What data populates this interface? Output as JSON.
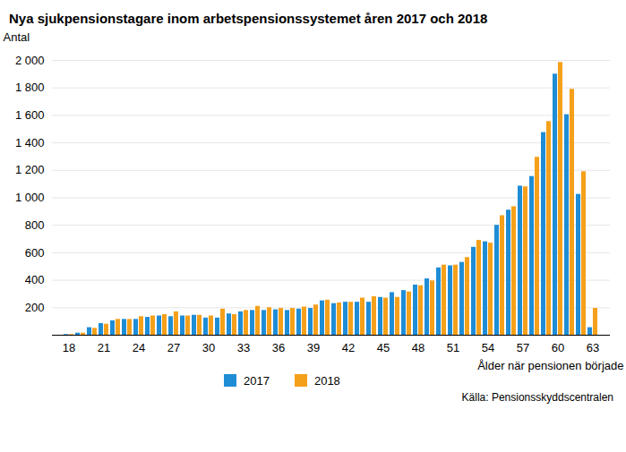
{
  "chart_data": {
    "type": "bar",
    "title": "Nya sjukpensionstagare inom arbetspensionssystemet åren 2017 och 2018",
    "y_label": "Antal",
    "x_label": "Ålder när pensionen började",
    "source": "Källa: Pensionsskyddscentralen",
    "categories": [
      "18",
      null,
      null,
      "21",
      null,
      null,
      "24",
      null,
      null,
      "27",
      null,
      null,
      "30",
      null,
      null,
      "33",
      null,
      null,
      "36",
      null,
      null,
      "39",
      null,
      null,
      "42",
      null,
      null,
      "45",
      null,
      null,
      "48",
      null,
      null,
      "51",
      null,
      null,
      "54",
      null,
      null,
      "57",
      null,
      null,
      "60",
      null,
      null,
      "63"
    ],
    "series": [
      {
        "name": "2017",
        "color": "#1f8dd6",
        "values": [
          5,
          15,
          55,
          85,
          105,
          115,
          115,
          130,
          140,
          135,
          140,
          145,
          125,
          125,
          155,
          170,
          180,
          180,
          185,
          180,
          190,
          195,
          250,
          230,
          240,
          240,
          240,
          275,
          310,
          325,
          365,
          410,
          490,
          505,
          530,
          640,
          680,
          800,
          910,
          1085,
          1155,
          1475,
          1900,
          1605,
          1025,
          55
        ]
      },
      {
        "name": "2018",
        "color": "#f5a01a",
        "values": [
          5,
          15,
          50,
          80,
          115,
          115,
          135,
          140,
          150,
          170,
          140,
          145,
          140,
          190,
          150,
          180,
          210,
          200,
          195,
          195,
          205,
          220,
          255,
          235,
          240,
          270,
          280,
          270,
          275,
          315,
          360,
          395,
          510,
          510,
          565,
          690,
          670,
          870,
          935,
          1080,
          1295,
          1555,
          1985,
          1790,
          1190,
          195
        ]
      }
    ],
    "ylim": [
      0,
      2000
    ],
    "yticks": [
      200,
      400,
      600,
      800,
      {
        "value": 1000,
        "label": "1 000"
      },
      {
        "value": 1200,
        "label": "1 200"
      },
      {
        "value": 1400,
        "label": "1 400"
      },
      {
        "value": 1600,
        "label": "1 600"
      },
      {
        "value": 1800,
        "label": "1 800"
      },
      {
        "value": 2000,
        "label": "2 000"
      }
    ],
    "grid": true,
    "legend": "bottom"
  }
}
